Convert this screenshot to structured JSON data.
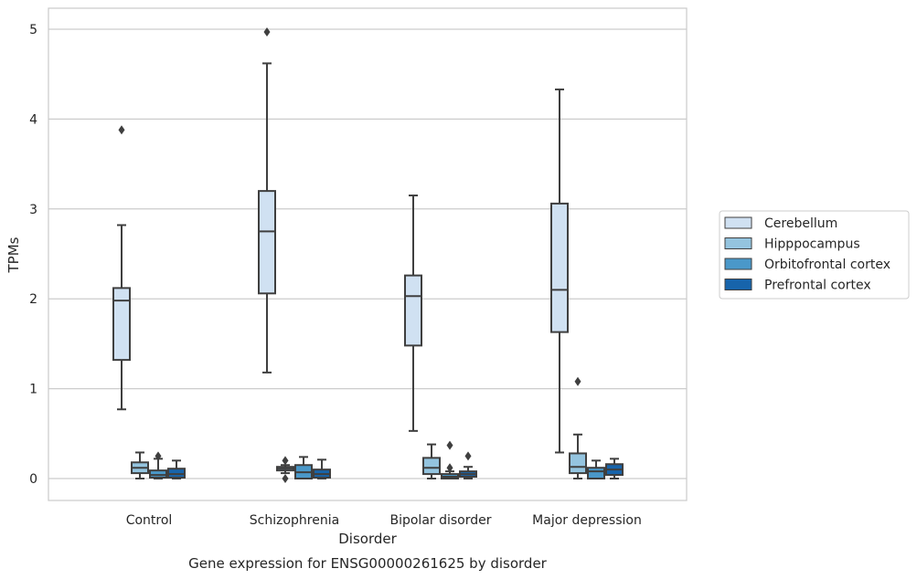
{
  "chart_data": {
    "type": "box",
    "title": "Gene expression for ENSG00000261625 by disorder",
    "xlabel": "Disorder",
    "ylabel": "TPMs",
    "ylim": [
      -0.24,
      5.23
    ],
    "yticks": [
      0,
      1,
      2,
      3,
      4,
      5
    ],
    "grid": "horizontal",
    "legend_position": "right",
    "categories": [
      "Control",
      "Schizophrenia",
      "Bipolar disorder",
      "Major depression"
    ],
    "series": [
      {
        "name": "Cerebellum",
        "color": "#d0e1f2",
        "boxes": [
          {
            "whislo": 0.77,
            "q1": 1.32,
            "med": 1.98,
            "q3": 2.12,
            "whishi": 2.82,
            "fliers": [
              3.88
            ]
          },
          {
            "whislo": 1.18,
            "q1": 2.06,
            "med": 2.75,
            "q3": 3.2,
            "whishi": 4.62,
            "fliers": [
              4.97
            ]
          },
          {
            "whislo": 0.53,
            "q1": 1.48,
            "med": 2.03,
            "q3": 2.26,
            "whishi": 3.15,
            "fliers": []
          },
          {
            "whislo": 0.29,
            "q1": 1.63,
            "med": 2.1,
            "q3": 3.06,
            "whishi": 4.33,
            "fliers": []
          }
        ]
      },
      {
        "name": "Hipppocampus",
        "color": "#94c4df",
        "boxes": [
          {
            "whislo": 0.0,
            "q1": 0.06,
            "med": 0.12,
            "q3": 0.18,
            "whishi": 0.29,
            "fliers": []
          },
          {
            "whislo": 0.06,
            "q1": 0.09,
            "med": 0.11,
            "q3": 0.13,
            "whishi": 0.15,
            "fliers": [
              0.2,
              0.0
            ]
          },
          {
            "whislo": 0.0,
            "q1": 0.05,
            "med": 0.12,
            "q3": 0.23,
            "whishi": 0.38,
            "fliers": []
          },
          {
            "whislo": 0.0,
            "q1": 0.06,
            "med": 0.13,
            "q3": 0.28,
            "whishi": 0.49,
            "fliers": [
              1.08
            ]
          }
        ]
      },
      {
        "name": "Orbitofrontal cortex",
        "color": "#4a98c9",
        "boxes": [
          {
            "whislo": 0.0,
            "q1": 0.01,
            "med": 0.04,
            "q3": 0.09,
            "whishi": 0.22,
            "fliers": [
              0.25
            ]
          },
          {
            "whislo": 0.0,
            "q1": 0.0,
            "med": 0.07,
            "q3": 0.15,
            "whishi": 0.24,
            "fliers": []
          },
          {
            "whislo": 0.0,
            "q1": 0.0,
            "med": 0.02,
            "q3": 0.05,
            "whishi": 0.08,
            "fliers": [
              0.37,
              0.12
            ]
          },
          {
            "whislo": 0.0,
            "q1": 0.0,
            "med": 0.08,
            "q3": 0.12,
            "whishi": 0.2,
            "fliers": []
          }
        ]
      },
      {
        "name": "Prefrontal cortex",
        "color": "#1764ab",
        "boxes": [
          {
            "whislo": 0.0,
            "q1": 0.01,
            "med": 0.05,
            "q3": 0.11,
            "whishi": 0.2,
            "fliers": []
          },
          {
            "whislo": 0.0,
            "q1": 0.01,
            "med": 0.05,
            "q3": 0.1,
            "whishi": 0.21,
            "fliers": []
          },
          {
            "whislo": 0.0,
            "q1": 0.02,
            "med": 0.05,
            "q3": 0.08,
            "whishi": 0.13,
            "fliers": [
              0.25
            ]
          },
          {
            "whislo": 0.0,
            "q1": 0.04,
            "med": 0.1,
            "q3": 0.16,
            "whishi": 0.22,
            "fliers": []
          }
        ]
      }
    ]
  }
}
